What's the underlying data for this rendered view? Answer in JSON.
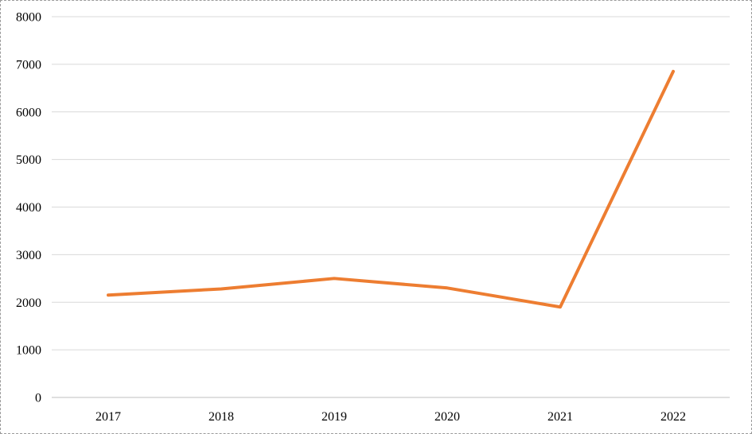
{
  "chart_data": {
    "type": "line",
    "categories": [
      "2017",
      "2018",
      "2019",
      "2020",
      "2021",
      "2022"
    ],
    "values": [
      2150,
      2280,
      2500,
      2300,
      1900,
      6850
    ],
    "title": "",
    "xlabel": "",
    "ylabel": "",
    "ylim": [
      0,
      8000
    ],
    "ytick_interval": 1000,
    "ytick_labels": [
      "0",
      "1000",
      "2000",
      "3000",
      "4000",
      "5000",
      "6000",
      "7000",
      "8000"
    ],
    "grid": true,
    "legend_position": "none",
    "colors": {
      "line": "#ED7D31",
      "gridline": "#d9d9d9",
      "axis": "#bfbfbf",
      "label": "#000000",
      "background": "#ffffff"
    }
  }
}
